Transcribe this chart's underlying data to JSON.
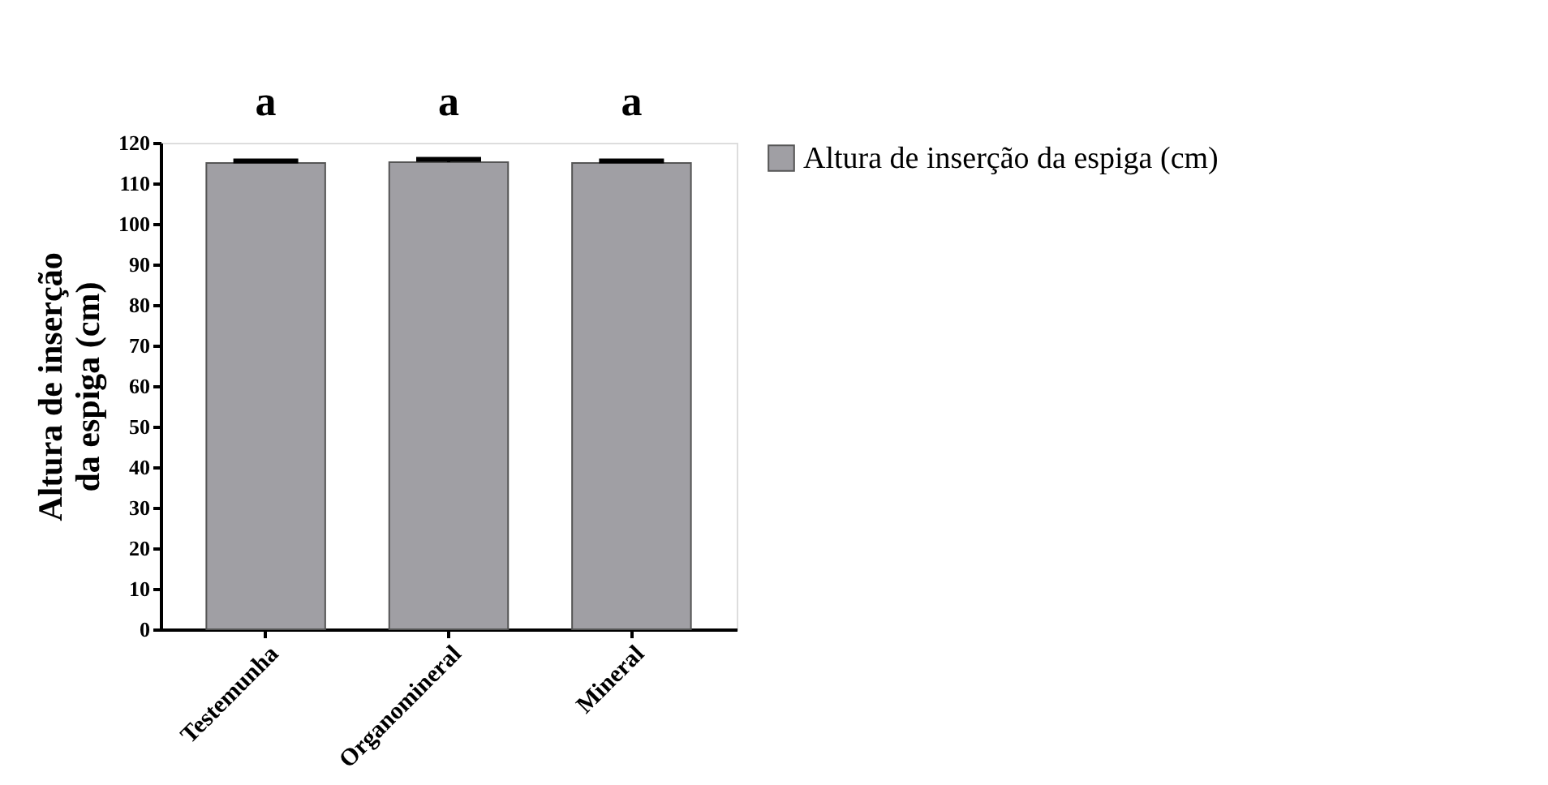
{
  "chart_data": {
    "type": "bar",
    "ylabel": "Altura de inserção\nda espiga (cm)",
    "categories": [
      "Testemunha",
      "Organomineral",
      "Mineral"
    ],
    "series": [
      {
        "name": "Altura de inserção da espiga (cm)",
        "color": "#a09fa4",
        "values": [
          115,
          115.2,
          115
        ],
        "errors": [
          [
            115,
            115.5
          ],
          [
            115.2,
            115.9
          ],
          [
            115,
            115.5
          ]
        ]
      }
    ],
    "ylim": [
      0,
      120
    ],
    "yticks": [
      0,
      10,
      20,
      30,
      40,
      50,
      60,
      70,
      80,
      90,
      100,
      110,
      120
    ],
    "annotations": [
      "a",
      "a",
      "a"
    ],
    "legend": "top right",
    "grid": false
  }
}
